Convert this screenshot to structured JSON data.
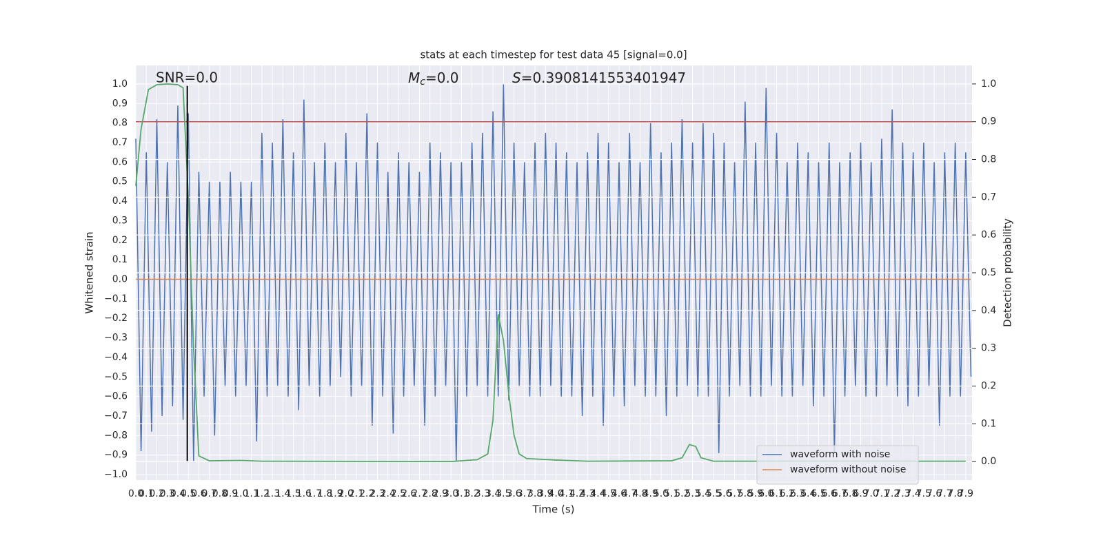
{
  "chart_data": {
    "type": "line",
    "title": "stats at each timestep for test data 45 [signal=0.0]",
    "xlabel": "Time (s)",
    "ylabel": "Whitened strain",
    "y2label": "Detection probability",
    "annotations": {
      "snr": "SNR=0.0",
      "mc": {
        "symbol": "M",
        "subscript": "c",
        "text": "=0.0"
      },
      "s": {
        "symbol": "S",
        "text": "=0.3908141553401947"
      }
    },
    "grid": true,
    "legend": "lower right",
    "xlim": [
      0,
      7.96
    ],
    "ylim": [
      -1.028,
      1.095
    ],
    "y2lim": [
      -0.049,
      1.049
    ],
    "xticks": [
      {
        "value": 0,
        "label": "0.0"
      },
      0.1,
      0.2,
      0.3,
      0.4,
      0.5,
      0.6,
      0.7,
      0.8,
      0.9,
      {
        "value": 1,
        "label": "1.0"
      },
      1.1,
      1.2,
      1.3,
      1.4,
      1.5,
      1.6,
      1.7,
      1.8,
      1.9,
      {
        "value": 2,
        "label": "2.0"
      },
      2.1,
      2.2,
      2.3,
      2.4,
      2.5,
      2.6,
      2.7,
      2.8,
      2.9,
      {
        "value": 3,
        "label": "3.0"
      },
      3.1,
      3.2,
      3.3,
      3.4,
      3.5,
      3.6,
      3.7,
      3.8,
      3.9,
      {
        "value": 4,
        "label": "4.0"
      },
      4.1,
      4.2,
      4.3,
      4.4,
      4.5,
      4.6,
      4.7,
      4.8,
      4.9,
      {
        "value": 5,
        "label": "5.0"
      },
      5.1,
      5.2,
      5.3,
      5.4,
      5.5,
      5.6,
      5.7,
      5.8,
      5.9,
      {
        "value": 6,
        "label": "6.0"
      },
      6.1,
      6.2,
      6.3,
      6.4,
      6.5,
      6.6,
      6.7,
      6.8,
      6.9,
      {
        "value": 7,
        "label": "7.0"
      },
      7.1,
      7.2,
      7.3,
      7.4,
      7.5,
      7.6,
      7.7,
      7.8,
      7.9
    ],
    "yticks": [
      {
        "value": -1,
        "label": "−1.0"
      },
      {
        "value": -0.9,
        "label": "−0.9"
      },
      {
        "value": -0.8,
        "label": "−0.8"
      },
      {
        "value": -0.7,
        "label": "−0.7"
      },
      {
        "value": -0.6,
        "label": "−0.6"
      },
      {
        "value": -0.5,
        "label": "−0.5"
      },
      {
        "value": -0.4,
        "label": "−0.4"
      },
      {
        "value": -0.3,
        "label": "−0.3"
      },
      {
        "value": -0.2,
        "label": "−0.2"
      },
      {
        "value": -0.1,
        "label": "−0.1"
      },
      {
        "value": 0,
        "label": "0.0"
      },
      0.1,
      0.2,
      0.3,
      0.4,
      0.5,
      0.6,
      0.7,
      0.8,
      0.9,
      {
        "value": 1,
        "label": "1.0"
      }
    ],
    "y2ticks": [
      {
        "value": 0,
        "label": "0.0"
      },
      0.1,
      0.2,
      0.3,
      0.4,
      0.5,
      0.6,
      0.7,
      0.8,
      0.9,
      {
        "value": 1,
        "label": "1.0"
      }
    ],
    "vline": {
      "x": 0.49,
      "ymin": -0.93,
      "ymax": 0.99,
      "color": "#000000"
    },
    "threshold": {
      "value": 0.9,
      "axis": "y2",
      "color": "#c44e52"
    },
    "series": [
      {
        "name": "waveform with noise",
        "color": "#4c72b0",
        "x": [
          0,
          0.05,
          0.1,
          0.15,
          0.2,
          0.25,
          0.3,
          0.35,
          0.4,
          0.45,
          0.5,
          0.55,
          0.6,
          0.65,
          0.7,
          0.75,
          0.8,
          0.85,
          0.9,
          0.95,
          1,
          1.05,
          1.1,
          1.15,
          1.2,
          1.25,
          1.3,
          1.35,
          1.4,
          1.45,
          1.5,
          1.55,
          1.6,
          1.65,
          1.7,
          1.75,
          1.8,
          1.85,
          1.9,
          1.95,
          2,
          2.05,
          2.1,
          2.15,
          2.2,
          2.25,
          2.3,
          2.35,
          2.4,
          2.45,
          2.5,
          2.55,
          2.6,
          2.65,
          2.7,
          2.75,
          2.8,
          2.85,
          2.9,
          2.95,
          3,
          3.05,
          3.1,
          3.15,
          3.2,
          3.25,
          3.3,
          3.35,
          3.4,
          3.45,
          3.5,
          3.55,
          3.6,
          3.65,
          3.7,
          3.75,
          3.8,
          3.85,
          3.9,
          3.95,
          4,
          4.05,
          4.1,
          4.15,
          4.2,
          4.25,
          4.3,
          4.35,
          4.4,
          4.45,
          4.5,
          4.55,
          4.6,
          4.65,
          4.7,
          4.75,
          4.8,
          4.85,
          4.9,
          4.95,
          5,
          5.05,
          5.1,
          5.15,
          5.2,
          5.25,
          5.3,
          5.35,
          5.4,
          5.45,
          5.5,
          5.55,
          5.6,
          5.65,
          5.7,
          5.75,
          5.8,
          5.85,
          5.9,
          5.95,
          6,
          6.05,
          6.1,
          6.15,
          6.2,
          6.25,
          6.3,
          6.35,
          6.4,
          6.45,
          6.5,
          6.55,
          6.6,
          6.65,
          6.7,
          6.75,
          6.8,
          6.85,
          6.9,
          6.95,
          7,
          7.05,
          7.1,
          7.15,
          7.2,
          7.25,
          7.3,
          7.35,
          7.4,
          7.45,
          7.5,
          7.55,
          7.6,
          7.65,
          7.7,
          7.75,
          7.8,
          7.85,
          7.9,
          7.95
        ],
        "values": [
          0.72,
          -0.88,
          0.65,
          -0.78,
          0.82,
          -0.7,
          0.6,
          -0.65,
          0.89,
          -0.72,
          0.85,
          -0.93,
          0.55,
          -0.6,
          0.5,
          -0.8,
          0.5,
          -0.55,
          0.55,
          -0.6,
          0.5,
          -0.55,
          0.5,
          -0.83,
          0.75,
          -0.6,
          0.7,
          -0.55,
          0.82,
          -0.6,
          0.65,
          -0.67,
          0.92,
          -0.55,
          0.6,
          -0.6,
          0.7,
          -0.55,
          0.6,
          -0.5,
          0.75,
          -0.6,
          0.6,
          -0.55,
          0.85,
          -0.75,
          0.7,
          -0.6,
          0.55,
          -0.79,
          0.65,
          -0.6,
          0.6,
          -0.55,
          0.55,
          -0.75,
          0.7,
          -0.6,
          0.65,
          -0.55,
          0.6,
          -0.93,
          0.6,
          -0.6,
          0.7,
          -0.55,
          0.75,
          -0.6,
          0.86,
          -0.6,
          1.0,
          -0.62,
          0.7,
          -0.55,
          0.6,
          -0.6,
          0.7,
          -0.6,
          0.75,
          -0.55,
          0.7,
          -0.6,
          0.65,
          -0.6,
          0.6,
          -0.7,
          0.65,
          -0.6,
          0.75,
          -0.75,
          0.7,
          -0.6,
          0.6,
          -0.65,
          0.75,
          -0.55,
          0.6,
          -0.6,
          0.8,
          -0.6,
          0.65,
          -0.7,
          0.7,
          -0.6,
          0.82,
          -0.55,
          0.7,
          -0.6,
          0.8,
          -0.6,
          0.75,
          -0.89,
          0.7,
          -0.6,
          0.6,
          -0.55,
          0.91,
          -0.6,
          0.7,
          -0.6,
          0.98,
          -0.55,
          0.75,
          -0.6,
          0.6,
          -0.6,
          0.7,
          -0.55,
          0.65,
          -0.65,
          0.6,
          -0.6,
          0.7,
          -0.89,
          0.6,
          -0.6,
          0.65,
          -0.55,
          0.7,
          -0.6,
          0.6,
          -0.6,
          0.72,
          -0.55,
          0.87,
          -0.6,
          0.7,
          -0.65,
          0.65,
          -0.6,
          0.7,
          -0.55,
          0.6,
          -0.75,
          0.65,
          -0.6,
          0.7,
          -0.6,
          0.65,
          -0.5
        ]
      },
      {
        "name": "waveform without noise",
        "color": "#dd8452",
        "x": [
          0,
          7.95
        ],
        "values": [
          0,
          0
        ]
      },
      {
        "color": "#55a868",
        "axis": "y2",
        "x": [
          0,
          0.05,
          0.12,
          0.2,
          0.3,
          0.4,
          0.45,
          0.5,
          0.55,
          0.6,
          0.7,
          1.0,
          1.2,
          3.0,
          3.25,
          3.35,
          3.4,
          3.45,
          3.5,
          3.55,
          3.6,
          3.65,
          3.72,
          4.0,
          4.3,
          5.1,
          5.2,
          5.27,
          5.33,
          5.38,
          5.5,
          7.9
        ],
        "values": [
          0.73,
          0.88,
          0.985,
          0.998,
          1.0,
          0.998,
          0.99,
          0.7,
          0.3,
          0.015,
          0.002,
          0.003,
          0.001,
          0.0,
          0.005,
          0.02,
          0.11,
          0.39,
          0.32,
          0.18,
          0.07,
          0.02,
          0.008,
          0.004,
          0.001,
          0.002,
          0.01,
          0.045,
          0.04,
          0.01,
          0.001,
          0.001
        ]
      }
    ]
  }
}
